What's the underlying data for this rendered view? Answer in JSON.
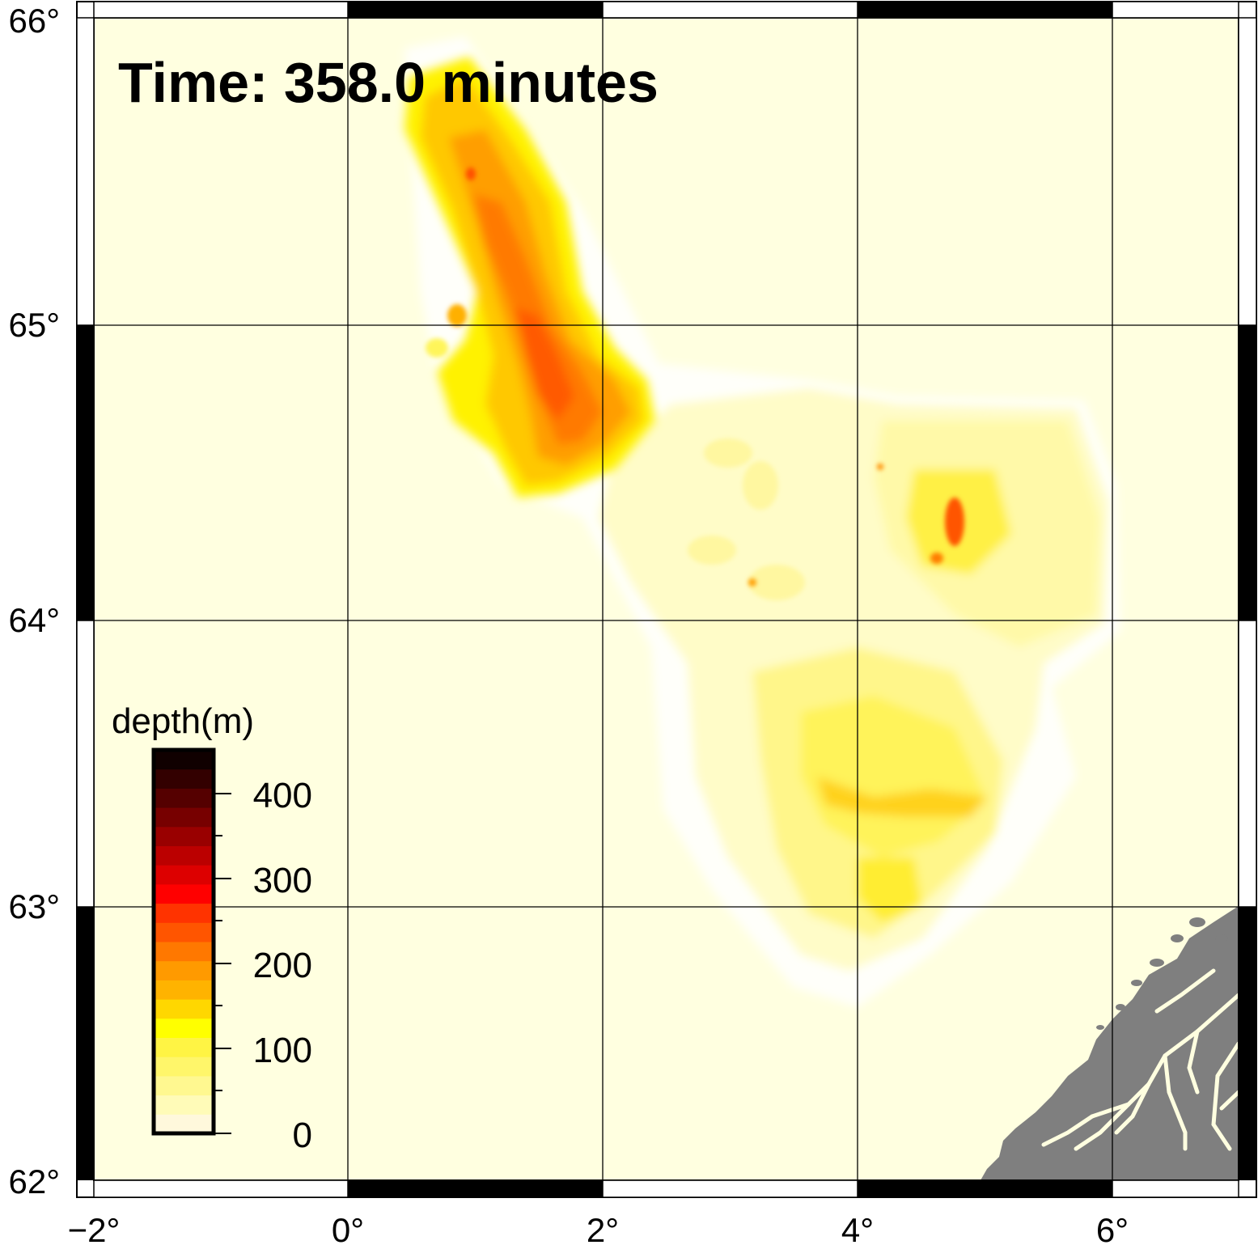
{
  "title": "Time:  358.0 minutes",
  "axes": {
    "x_ticks": [
      "−2°",
      "0°",
      "2°",
      "4°",
      "6°"
    ],
    "y_ticks": [
      "66°",
      "65°",
      "64°",
      "63°",
      "62°"
    ]
  },
  "colorbar": {
    "label": "depth(m)",
    "ticks": [
      "400",
      "300",
      "200",
      "100",
      "0"
    ],
    "colors": [
      "#fff8dc",
      "#fffbb8",
      "#fff890",
      "#fff66a",
      "#fff444",
      "#ffff00",
      "#ffd700",
      "#ffb300",
      "#ff9a00",
      "#ff7800",
      "#ff5500",
      "#ff3300",
      "#ff0000",
      "#dd0000",
      "#bb0000",
      "#990000",
      "#770000",
      "#550000",
      "#330000",
      "#100000"
    ]
  },
  "colors": {
    "sea": "#ffffe0",
    "land": "#7f7f7f",
    "frame": "#000000"
  }
}
